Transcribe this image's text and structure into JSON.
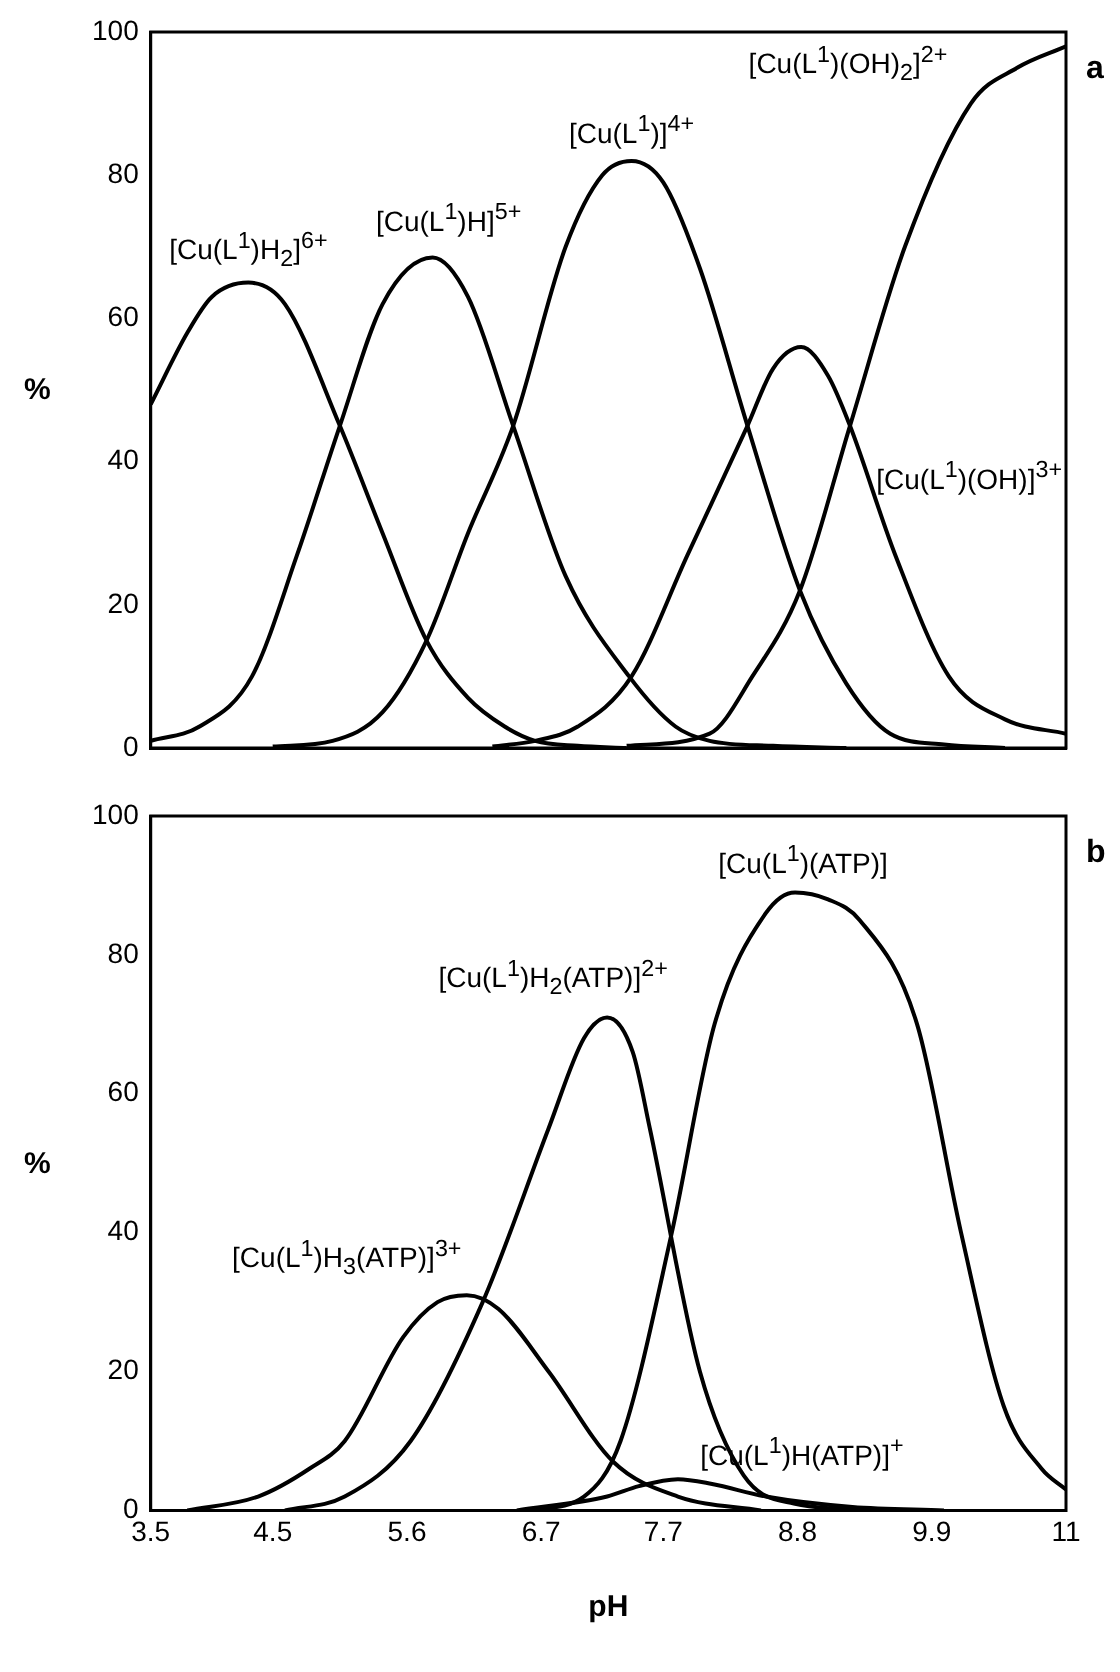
{
  "chart_data": [
    {
      "type": "line",
      "ylabel": "%",
      "annotations": [
        "a"
      ],
      "xlim": [
        3.5,
        11
      ],
      "ylim": [
        0,
        100
      ],
      "yticks": [
        0,
        20,
        40,
        60,
        80,
        100
      ],
      "tick_labels": "y",
      "grid": false,
      "legend": false,
      "marker": "none",
      "line_style": "solid",
      "series": [
        {
          "name": "[Cu(L$^{1}$)H$_{2}$]$^{6+}$",
          "color": "#000000",
          "x": [
            3.5,
            3.8,
            4.0,
            4.3,
            4.6,
            5.05,
            5.4,
            5.76,
            6.1,
            6.4,
            6.65,
            7.0,
            7.4
          ],
          "values": [
            48,
            58,
            63,
            65,
            62,
            45,
            30,
            15,
            7,
            3,
            1,
            0.3,
            0
          ]
        },
        {
          "name": "[Cu(L$^{1}$)H]$^{5+}$",
          "color": "#000000",
          "x": [
            3.5,
            3.9,
            4.33,
            4.7,
            5.05,
            5.4,
            5.81,
            6.1,
            6.47,
            6.9,
            7.42,
            7.8,
            8.08,
            8.6,
            9.2
          ],
          "values": [
            1,
            3,
            10,
            27,
            45,
            62,
            68.5,
            63,
            45,
            24,
            10,
            3,
            1,
            0.3,
            0
          ]
        },
        {
          "name": "[Cu(L$^{1}$)]$^{4+}$",
          "color": "#000000",
          "x": [
            4.5,
            4.99,
            5.4,
            5.76,
            6.1,
            6.47,
            6.9,
            7.2,
            7.44,
            7.7,
            8.0,
            8.39,
            8.82,
            9.2,
            9.56,
            10.0,
            10.5
          ],
          "values": [
            0.2,
            1,
            5,
            15,
            30,
            45,
            70,
            80,
            82,
            79,
            67,
            45,
            22,
            9,
            2,
            0.5,
            0
          ]
        },
        {
          "name": "[Cu(L$^{1}$)(OH)]$^{3+}$",
          "color": "#000000",
          "x": [
            6.3,
            6.65,
            7.0,
            7.44,
            7.9,
            8.39,
            8.6,
            8.83,
            9.05,
            9.23,
            9.6,
            10.04,
            10.5,
            11
          ],
          "values": [
            0.2,
            1,
            3,
            10,
            27,
            45,
            53,
            56,
            52,
            45,
            27,
            10,
            4,
            2
          ]
        },
        {
          "name": "[Cu(L$^{1}$)(OH)$_{2}$]$^{2+}$",
          "color": "#000000",
          "x": [
            7.4,
            8.08,
            8.43,
            8.82,
            9.23,
            9.68,
            10.22,
            10.6,
            11
          ],
          "values": [
            0.3,
            2,
            10,
            22,
            45,
            70,
            90,
            95,
            98
          ]
        }
      ]
    },
    {
      "type": "line",
      "xlabel": "pH",
      "ylabel": "%",
      "annotations": [
        "b"
      ],
      "xlim": [
        3.5,
        11
      ],
      "ylim": [
        0,
        100
      ],
      "yticks": [
        0,
        20,
        40,
        60,
        80,
        100
      ],
      "xticks": [
        3.5,
        4.5,
        5.6,
        6.7,
        7.7,
        8.8,
        9.9,
        11
      ],
      "grid": false,
      "legend": false,
      "marker": "none",
      "line_style": "solid",
      "series": [
        {
          "name": "[Cu(L$^{1}$)H$_{3}$(ATP)]$^{3+}$",
          "color": "#000000",
          "x": [
            3.8,
            4.38,
            4.8,
            5.09,
            5.57,
            5.85,
            6.09,
            6.35,
            6.76,
            7.29,
            7.82,
            8.5
          ],
          "values": [
            0,
            2,
            6,
            10,
            25,
            30,
            31,
            29,
            20,
            7,
            2,
            0
          ]
        },
        {
          "name": "[Cu(L$^{1}$)H$_{2}$(ATP)]$^{2+}$",
          "color": "#000000",
          "x": [
            4.6,
            5.09,
            5.63,
            6.22,
            6.76,
            7.05,
            7.24,
            7.45,
            7.59,
            8.0,
            8.36,
            8.77,
            9.5
          ],
          "values": [
            0,
            2,
            10,
            30,
            55,
            68,
            71,
            66,
            55,
            20,
            5,
            1,
            0
          ]
        },
        {
          "name": "[Cu(L$^{1}$)H(ATP)]$^{+}$",
          "color": "#000000",
          "x": [
            6.5,
            7.24,
            7.5,
            7.82,
            8.1,
            8.54,
            9.25,
            10
          ],
          "values": [
            0,
            2,
            3.5,
            4.5,
            3.8,
            2,
            0.5,
            0
          ]
        },
        {
          "name": "[Cu(L$^{1}$)(ATP)]",
          "color": "#000000",
          "x": [
            6.6,
            7.05,
            7.35,
            7.77,
            8.12,
            8.54,
            8.78,
            9.05,
            9.31,
            9.78,
            10.14,
            10.49,
            10.8,
            11
          ],
          "values": [
            0,
            2,
            10,
            40,
            70,
            86,
            89,
            88,
            85,
            70,
            40,
            15,
            6,
            3
          ]
        }
      ]
    }
  ]
}
